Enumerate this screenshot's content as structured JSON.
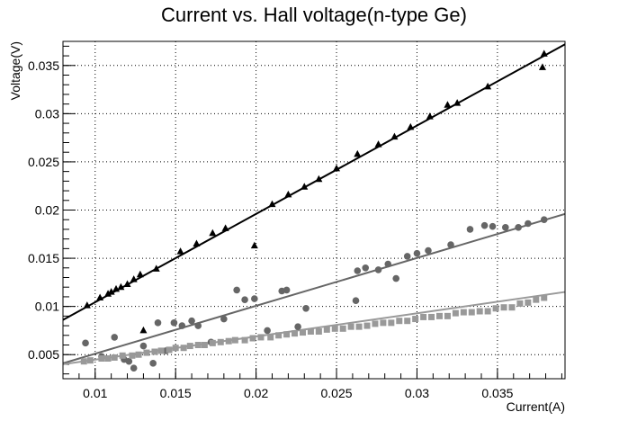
{
  "chart_data": {
    "type": "scatter",
    "title": "Current vs. Hall voltage(n-type Ge)",
    "xlabel": "Current(A)",
    "ylabel": "Voltage(V)",
    "xlim": [
      0.008,
      0.0392
    ],
    "ylim": [
      0.0025,
      0.0375
    ],
    "xticks": [
      0.01,
      0.015,
      0.02,
      0.025,
      0.03,
      0.035
    ],
    "xtick_labels": [
      "0.01",
      "0.015",
      "0.02",
      "0.025",
      "0.03",
      "0.035"
    ],
    "yticks": [
      0.005,
      0.01,
      0.015,
      0.02,
      0.025,
      0.03,
      0.035
    ],
    "ytick_labels": [
      "0.005",
      "0.01",
      "0.015",
      "0.02",
      "0.025",
      "0.03",
      "0.035"
    ],
    "grid": true,
    "series": [
      {
        "marker": "triangle",
        "color": "#000000",
        "x": [
          0.0095,
          0.0103,
          0.0108,
          0.011,
          0.0113,
          0.0116,
          0.012,
          0.0124,
          0.0128,
          0.013,
          0.0138,
          0.0153,
          0.0163,
          0.0173,
          0.0181,
          0.0199,
          0.021,
          0.022,
          0.023,
          0.0239,
          0.025,
          0.0263,
          0.0276,
          0.0286,
          0.0296,
          0.0308,
          0.0319,
          0.0325,
          0.0344,
          0.0379,
          0.0378
        ],
        "y": [
          0.0101,
          0.0109,
          0.0113,
          0.0115,
          0.0118,
          0.012,
          0.0123,
          0.0128,
          0.0133,
          0.0075,
          0.0139,
          0.0157,
          0.0165,
          0.0176,
          0.0181,
          0.0163,
          0.0206,
          0.0216,
          0.0224,
          0.0232,
          0.0243,
          0.0258,
          0.0268,
          0.0276,
          0.0286,
          0.0297,
          0.0309,
          0.0311,
          0.0328,
          0.0362,
          0.0348
        ],
        "fit": [
          [
            0.008,
            0.0086
          ],
          [
            0.0392,
            0.0372
          ]
        ]
      },
      {
        "marker": "circle",
        "color": "#666666",
        "x": [
          0.0094,
          0.0104,
          0.0112,
          0.0118,
          0.0121,
          0.0124,
          0.013,
          0.0136,
          0.0139,
          0.0144,
          0.0149,
          0.0154,
          0.016,
          0.0164,
          0.0172,
          0.018,
          0.0188,
          0.0193,
          0.0199,
          0.0207,
          0.0216,
          0.0219,
          0.0226,
          0.0231,
          0.0262,
          0.0263,
          0.0268,
          0.0276,
          0.0282,
          0.0287,
          0.0294,
          0.03,
          0.0307,
          0.0321,
          0.0333,
          0.0342,
          0.0347,
          0.0355,
          0.0363,
          0.0369,
          0.0379
        ],
        "y": [
          0.0062,
          0.0048,
          0.0068,
          0.0045,
          0.0043,
          0.0036,
          0.0059,
          0.0041,
          0.0083,
          0.0054,
          0.0083,
          0.008,
          0.0085,
          0.008,
          0.0063,
          0.0087,
          0.0117,
          0.0107,
          0.0108,
          0.0075,
          0.0116,
          0.0117,
          0.0079,
          0.0098,
          0.0106,
          0.0137,
          0.014,
          0.0138,
          0.0144,
          0.0129,
          0.0152,
          0.0155,
          0.0158,
          0.0164,
          0.018,
          0.0184,
          0.0183,
          0.0182,
          0.0182,
          0.0186,
          0.019
        ],
        "fit": [
          [
            0.008,
            0.0041
          ],
          [
            0.0392,
            0.0196
          ]
        ]
      },
      {
        "marker": "square",
        "color": "#999999",
        "x": [
          0.0093,
          0.0097,
          0.0104,
          0.0108,
          0.0112,
          0.0117,
          0.0123,
          0.0127,
          0.0132,
          0.0137,
          0.0141,
          0.0146,
          0.015,
          0.0155,
          0.0159,
          0.0164,
          0.0168,
          0.0173,
          0.0178,
          0.0183,
          0.0187,
          0.0193,
          0.0198,
          0.0203,
          0.0209,
          0.0214,
          0.0219,
          0.0224,
          0.0229,
          0.0234,
          0.0239,
          0.0244,
          0.0249,
          0.0254,
          0.0259,
          0.0264,
          0.0269,
          0.0274,
          0.0279,
          0.0284,
          0.0289,
          0.0294,
          0.0299,
          0.0304,
          0.0309,
          0.0314,
          0.0319,
          0.0324,
          0.0329,
          0.0334,
          0.0339,
          0.0344,
          0.0349,
          0.0354,
          0.0359,
          0.0364,
          0.0369,
          0.0374,
          0.0379
        ],
        "y": [
          0.0043,
          0.0044,
          0.0046,
          0.0046,
          0.0047,
          0.0049,
          0.0049,
          0.005,
          0.0052,
          0.0053,
          0.0054,
          0.0055,
          0.0057,
          0.0057,
          0.0059,
          0.006,
          0.006,
          0.0062,
          0.0063,
          0.0064,
          0.0065,
          0.0065,
          0.0067,
          0.0068,
          0.0068,
          0.007,
          0.0071,
          0.0072,
          0.0073,
          0.0074,
          0.0074,
          0.0076,
          0.0077,
          0.0077,
          0.0079,
          0.0079,
          0.008,
          0.0082,
          0.0083,
          0.0083,
          0.0085,
          0.0085,
          0.0087,
          0.0089,
          0.0089,
          0.009,
          0.009,
          0.0093,
          0.0094,
          0.0094,
          0.0095,
          0.0095,
          0.0098,
          0.0099,
          0.0099,
          0.0103,
          0.0104,
          0.0107,
          0.0109
        ],
        "fit": [
          [
            0.008,
            0.004
          ],
          [
            0.0392,
            0.0115
          ]
        ]
      }
    ]
  }
}
